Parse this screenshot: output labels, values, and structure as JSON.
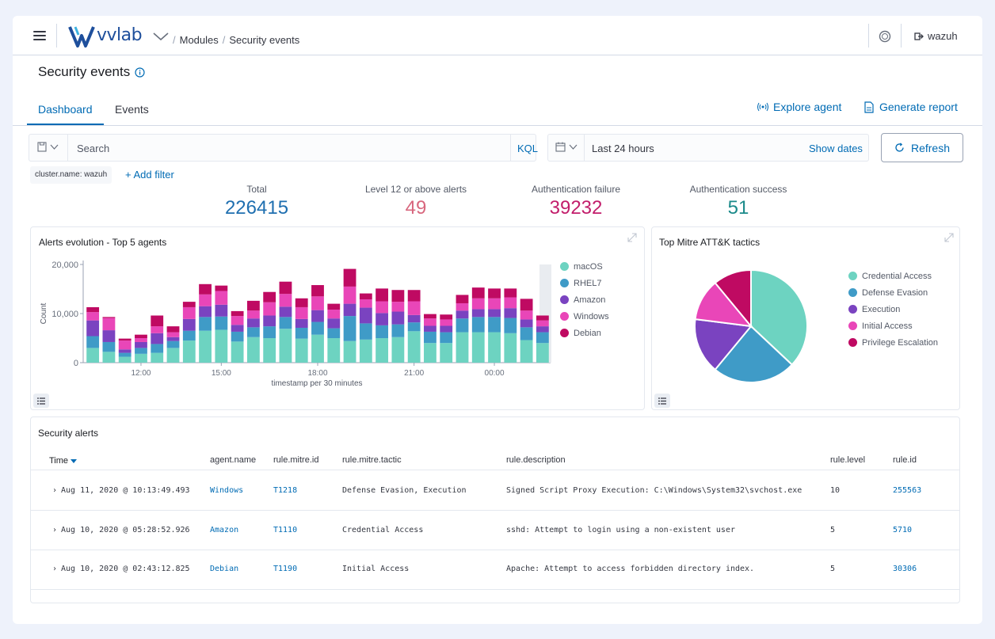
{
  "brand": {
    "logo_text": "vvlab",
    "accent": "#006bb4"
  },
  "breadcrumb": {
    "items": [
      "Modules",
      "Security events"
    ]
  },
  "header": {
    "user": "wazuh"
  },
  "page": {
    "title": "Security events"
  },
  "tabs": [
    {
      "label": "Dashboard",
      "active": true
    },
    {
      "label": "Events",
      "active": false
    }
  ],
  "actions": {
    "explore_agent": "Explore agent",
    "generate_report": "Generate report"
  },
  "search": {
    "placeholder": "Search",
    "language": "KQL"
  },
  "date": {
    "range": "Last 24 hours",
    "show_dates": "Show dates",
    "refresh": "Refresh"
  },
  "filters": {
    "pill": "cluster.name: wazuh",
    "add": "+ Add filter"
  },
  "stats": [
    {
      "label": "Total",
      "value": "226415",
      "color": "#1f6fb0"
    },
    {
      "label": "Level 12 or above alerts",
      "value": "49",
      "color": "#d8677e"
    },
    {
      "label": "Authentication failure",
      "value": "39232",
      "color": "#c21d6b"
    },
    {
      "label": "Authentication success",
      "value": "51",
      "color": "#1b8a8a"
    }
  ],
  "chart_data": [
    {
      "type": "bar",
      "title": "Alerts evolution - Top 5 agents",
      "xlabel": "timestamp per 30 minutes",
      "ylabel": "Count",
      "ylim": [
        0,
        20000
      ],
      "yticks": [
        "0",
        "10,000",
        "20,000"
      ],
      "xticks": [
        "12:00",
        "15:00",
        "18:00",
        "21:00",
        "00:00"
      ],
      "legend_position": "right",
      "series": [
        {
          "name": "macOS",
          "color": "#6dd3c1",
          "values": [
            3000,
            2200,
            1200,
            1800,
            2000,
            3000,
            4500,
            6500,
            6700,
            4300,
            5200,
            5000,
            6900,
            4900,
            5700,
            5000,
            4400,
            4700,
            5000,
            5200,
            6400,
            4000,
            4000,
            6200,
            6200,
            6200,
            6000,
            4600,
            4000
          ]
        },
        {
          "name": "RHEL7",
          "color": "#3f9bc7",
          "values": [
            2400,
            2000,
            800,
            1200,
            1800,
            1400,
            2000,
            2800,
            2700,
            2000,
            2000,
            2400,
            2400,
            2200,
            2600,
            2000,
            5100,
            3300,
            2600,
            2600,
            1800,
            2300,
            2200,
            2800,
            3100,
            3100,
            3100,
            2600,
            2200
          ]
        },
        {
          "name": "Amazon",
          "color": "#7a43c0",
          "values": [
            3200,
            2400,
            700,
            1200,
            2200,
            800,
            2400,
            2200,
            2400,
            1400,
            1800,
            2200,
            2100,
            1800,
            2400,
            2000,
            2500,
            3200,
            2500,
            2600,
            1500,
            1200,
            1300,
            1600,
            1600,
            1600,
            2000,
            1600,
            1200
          ]
        },
        {
          "name": "Windows",
          "color": "#e946b8",
          "values": [
            1700,
            2500,
            1800,
            800,
            1400,
            1000,
            2400,
            2400,
            2800,
            1800,
            1600,
            2700,
            2600,
            2400,
            2800,
            1800,
            3500,
            1700,
            2400,
            2000,
            2800,
            1500,
            1300,
            1500,
            2200,
            2200,
            2200,
            1800,
            1200
          ]
        },
        {
          "name": "Debian",
          "color": "#bf0a62",
          "values": [
            1000,
            200,
            400,
            700,
            2200,
            1200,
            1100,
            2100,
            1100,
            1000,
            2000,
            2100,
            2500,
            1800,
            2300,
            1200,
            3600,
            1200,
            2600,
            2400,
            2300,
            900,
            1000,
            1700,
            2200,
            2000,
            1800,
            2400,
            1000
          ]
        }
      ]
    },
    {
      "type": "pie",
      "title": "Top Mitre ATT&K tactics",
      "legend_position": "right",
      "series": [
        {
          "name": "Credential Access",
          "color": "#6dd3c1",
          "value": 37
        },
        {
          "name": "Defense Evasion",
          "color": "#3f9bc7",
          "value": 24
        },
        {
          "name": "Execution",
          "color": "#7a43c0",
          "value": 16
        },
        {
          "name": "Initial Access",
          "color": "#e946b8",
          "value": 12
        },
        {
          "name": "Privilege Escalation",
          "color": "#bf0a62",
          "value": 11
        }
      ]
    }
  ],
  "alerts": {
    "title": "Security alerts",
    "columns": [
      "Time",
      "agent.name",
      "rule.mitre.id",
      "rule.mitre.tactic",
      "rule.description",
      "rule.level",
      "rule.id"
    ],
    "rows": [
      {
        "time": "Aug 11, 2020 @ 10:13:49.493",
        "agent": "Windows",
        "mitre_id": "T1218",
        "tactic": "Defense Evasion, Execution",
        "description": "Signed Script Proxy Execution: C:\\Windows\\System32\\svchost.exe",
        "level": "10",
        "rule_id": "255563"
      },
      {
        "time": "Aug 10, 2020 @ 05:28:52.926",
        "agent": "Amazon",
        "mitre_id": "T1110",
        "tactic": "Credential Access",
        "description": "sshd: Attempt to login using a non-existent user",
        "level": "5",
        "rule_id": "5710"
      },
      {
        "time": "Aug 10, 2020 @ 02:43:12.825",
        "agent": "Debian",
        "mitre_id": "T1190",
        "tactic": "Initial Access",
        "description": "Apache: Attempt to access forbidden directory index.",
        "level": "5",
        "rule_id": "30306"
      }
    ]
  }
}
